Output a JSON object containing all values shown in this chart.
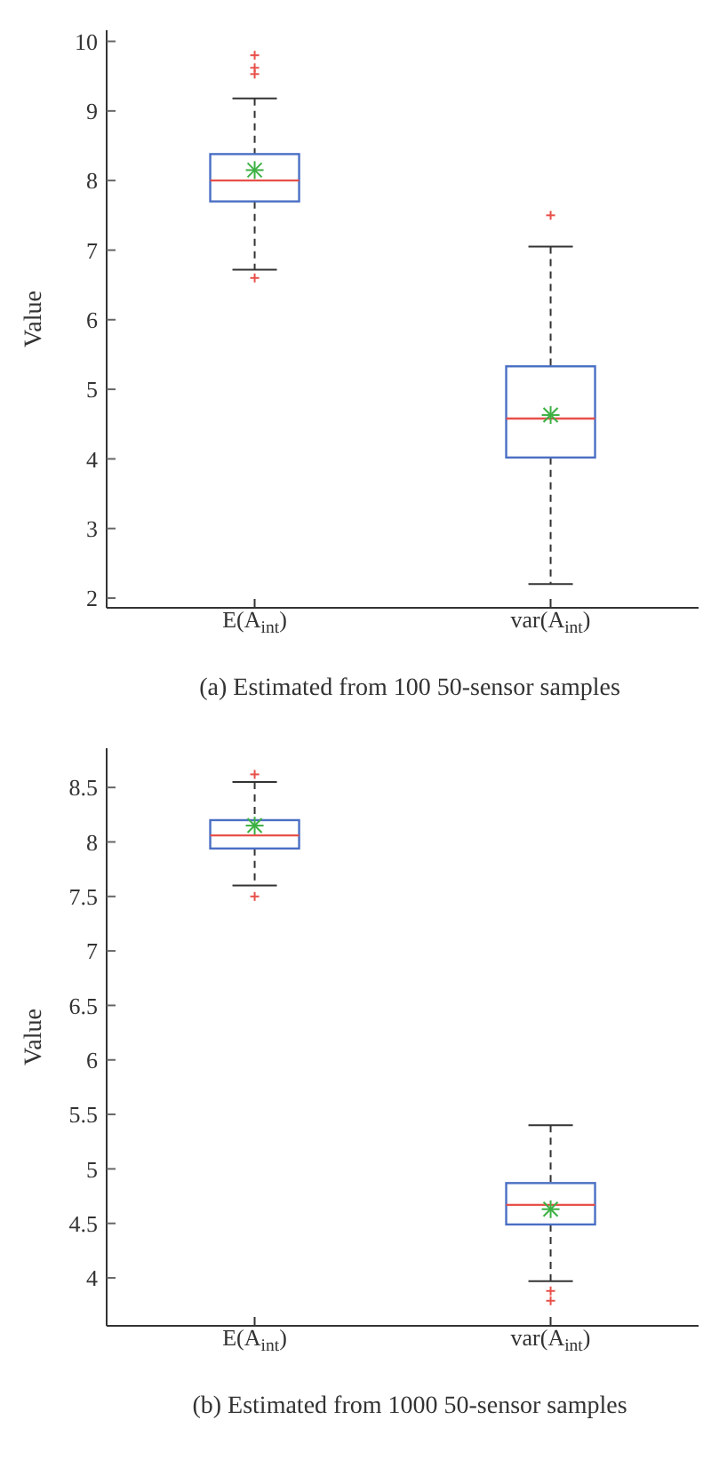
{
  "chart_data": [
    {
      "type": "box",
      "title": "(a)  Estimated from 100 50-sensor samples",
      "ylabel": "Value",
      "categories": [
        "E(A$_{int}$)",
        "var(A$_{int}$)"
      ],
      "ylim": [
        1.86,
        10.16
      ],
      "yticks": [
        2,
        3,
        4,
        5,
        6,
        7,
        8,
        9,
        10
      ],
      "grid": false,
      "legend": false,
      "series": [
        {
          "color": "#4a6fc4",
          "boxes": [
            {
              "low": 6.72,
              "q1": 7.7,
              "median": 8.0,
              "q3": 8.38,
              "high": 9.18,
              "mean": 8.15,
              "outliers": [
                9.8,
                9.62,
                9.53,
                6.6
              ]
            },
            {
              "low": 2.2,
              "q1": 4.02,
              "median": 4.58,
              "q3": 5.33,
              "high": 7.05,
              "mean": 4.63,
              "outliers": [
                7.5
              ]
            }
          ]
        }
      ]
    },
    {
      "type": "box",
      "title": "(b)  Estimated from 1000 50-sensor samples",
      "ylabel": "Value",
      "categories": [
        "E(A$_{int}$)",
        "var(A$_{int}$)"
      ],
      "ylim": [
        3.56,
        8.86
      ],
      "yticks": [
        4,
        4.5,
        5,
        5.5,
        6,
        6.5,
        7,
        7.5,
        8,
        8.5
      ],
      "grid": false,
      "legend": false,
      "series": [
        {
          "color": "#4a6fc4",
          "boxes": [
            {
              "low": 7.6,
              "q1": 7.94,
              "median": 8.06,
              "q3": 8.2,
              "high": 8.55,
              "mean": 8.15,
              "outliers": [
                8.62,
                7.5
              ]
            },
            {
              "low": 3.97,
              "q1": 4.49,
              "median": 4.67,
              "q3": 4.87,
              "high": 5.4,
              "mean": 4.63,
              "outliers": [
                3.88,
                3.79
              ]
            }
          ]
        }
      ]
    }
  ]
}
